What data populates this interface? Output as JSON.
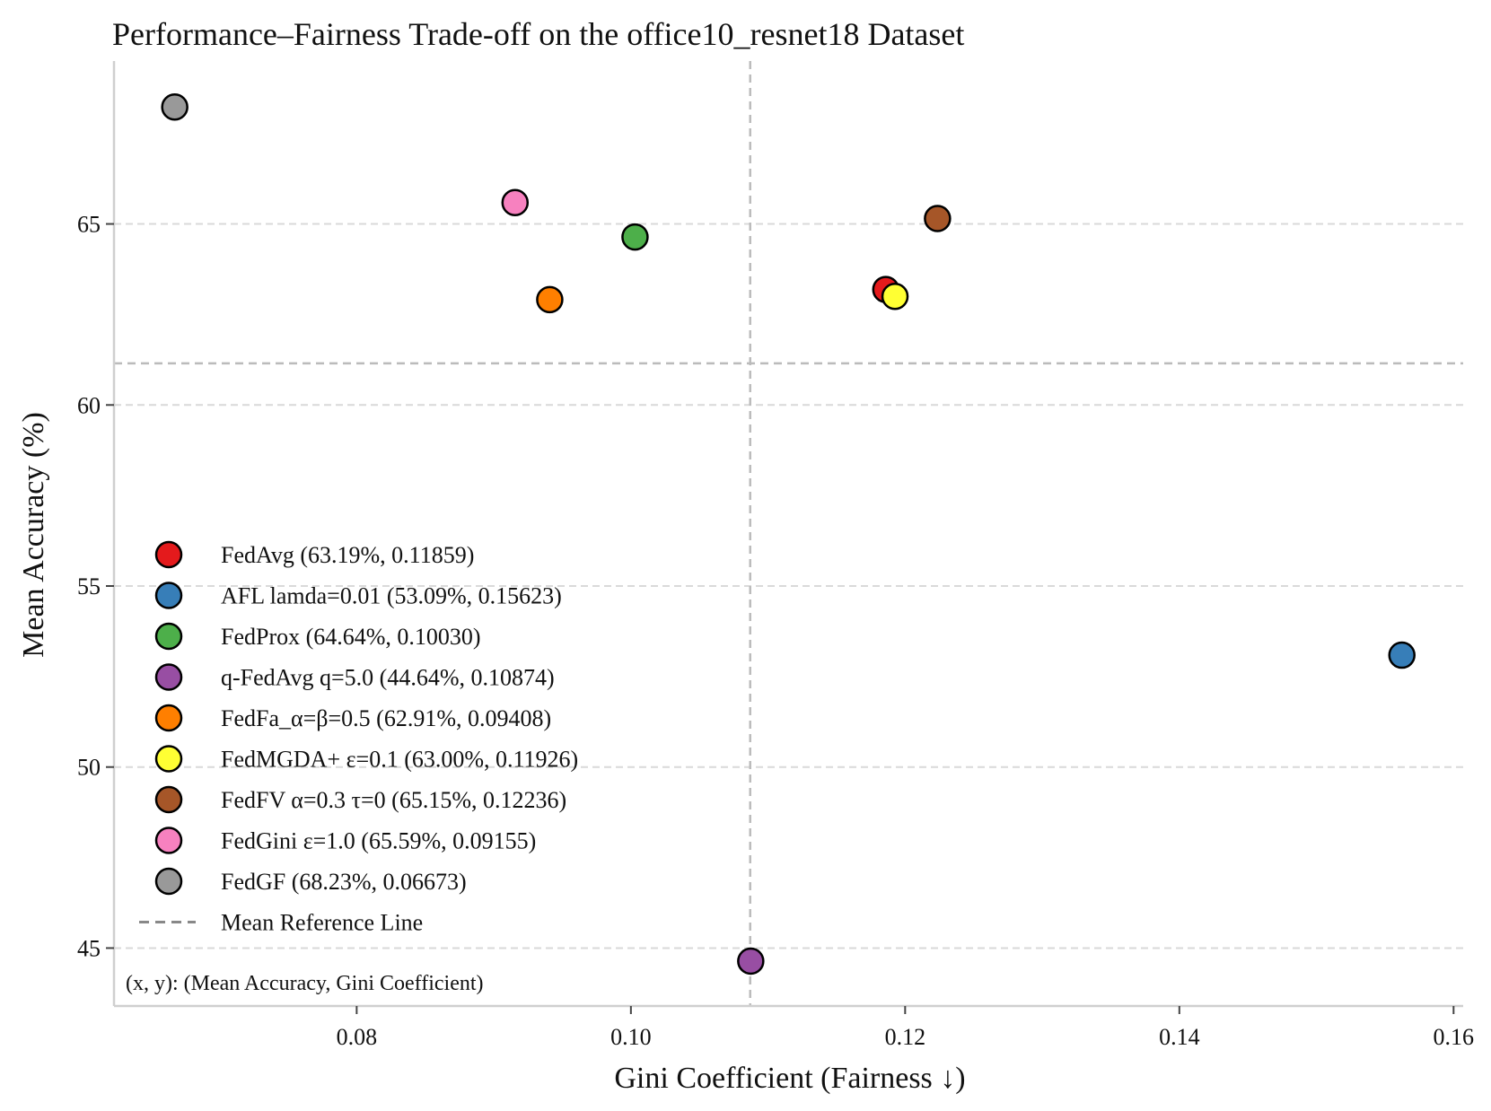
{
  "chart_data": {
    "type": "scatter",
    "title": "Performance–Fairness Trade-off on the office10_resnet18 Dataset",
    "xlabel": "Gini Coefficient (Fairness ↓)",
    "ylabel": "Mean Accuracy (%)",
    "xlim": [
      0.0623,
      0.1607
    ],
    "ylim": [
      43.4,
      69.5
    ],
    "xticks": [
      0.08,
      0.1,
      0.12,
      0.14,
      0.16
    ],
    "xtick_labels": [
      "0.08",
      "0.10",
      "0.12",
      "0.14",
      "0.16"
    ],
    "yticks": [
      45,
      50,
      55,
      60,
      65
    ],
    "ytick_labels": [
      "45",
      "50",
      "55",
      "60",
      "65"
    ],
    "grid": "y-dashed",
    "mean_reference": {
      "x": 0.1087,
      "y": 61.15,
      "label": "Mean Reference Line",
      "color": "#bbbbbb"
    },
    "series": [
      {
        "name": "FedAvg",
        "x": 0.11859,
        "y": 63.19,
        "color": "#e41a1c",
        "legend": "FedAvg (63.19%, 0.11859)"
      },
      {
        "name": "AFL lamda=0.01",
        "x": 0.15623,
        "y": 53.09,
        "color": "#377eb8",
        "legend": "AFL lamda=0.01 (53.09%, 0.15623)"
      },
      {
        "name": "FedProx",
        "x": 0.1003,
        "y": 64.64,
        "color": "#4daf4a",
        "legend": "FedProx (64.64%, 0.10030)"
      },
      {
        "name": "q-FedAvg q=5.0",
        "x": 0.10874,
        "y": 44.64,
        "color": "#984ea3",
        "legend": "q-FedAvg q=5.0 (44.64%, 0.10874)"
      },
      {
        "name": "FedFa_α=β=0.5",
        "x": 0.09408,
        "y": 62.91,
        "color": "#ff7f00",
        "legend": "FedFa_α=β=0.5 (62.91%, 0.09408)"
      },
      {
        "name": "FedMGDA+ ε=0.1",
        "x": 0.11926,
        "y": 63.0,
        "color": "#ffff33",
        "legend": "FedMGDA+ ε=0.1 (63.00%, 0.11926)"
      },
      {
        "name": "FedFV α=0.3 τ=0",
        "x": 0.12236,
        "y": 65.15,
        "color": "#a65628",
        "legend": "FedFV α=0.3 τ=0 (65.15%, 0.12236)"
      },
      {
        "name": "FedGini ε=1.0",
        "x": 0.09155,
        "y": 65.59,
        "color": "#f781bf",
        "legend": "FedGini ε=1.0 (65.59%, 0.09155)"
      },
      {
        "name": "FedGF",
        "x": 0.06673,
        "y": 68.23,
        "color": "#999999",
        "legend": "FedGF (68.23%, 0.06673)"
      }
    ],
    "legend_position": "lower-left",
    "annotation": "(x, y): (Mean Accuracy, Gini Coefficient)"
  }
}
